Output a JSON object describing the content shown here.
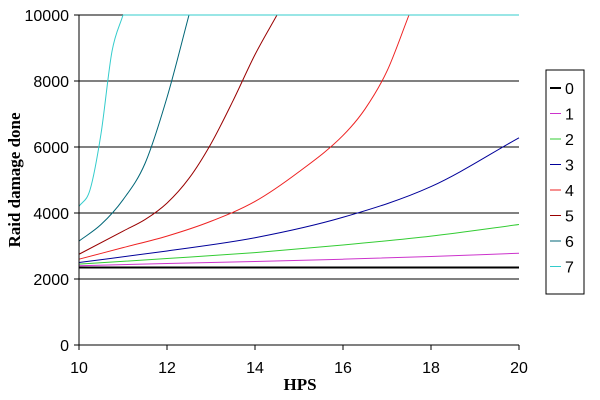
{
  "chart_data": {
    "type": "line",
    "xlabel": "HPS",
    "ylabel": "Raid damage done",
    "xlim": [
      10,
      20
    ],
    "ylim": [
      0,
      10000
    ],
    "x_ticks": [
      "10",
      "12",
      "14",
      "16",
      "18",
      "20"
    ],
    "y_ticks": [
      "0",
      "2000",
      "4000",
      "6000",
      "8000",
      "10000"
    ],
    "x_tick_values": [
      10,
      12,
      14,
      16,
      18,
      20
    ],
    "y_tick_values": [
      0,
      2000,
      4000,
      6000,
      8000,
      10000
    ],
    "grid": "horizontal",
    "legend_position": "right",
    "series": [
      {
        "name": "0",
        "color": "#000000",
        "points": [
          [
            10,
            2350
          ],
          [
            20,
            2350
          ]
        ]
      },
      {
        "name": "1",
        "color": "#cc33cc",
        "points": [
          [
            10,
            2400
          ],
          [
            12,
            2470
          ],
          [
            14,
            2530
          ],
          [
            16,
            2600
          ],
          [
            18,
            2680
          ],
          [
            20,
            2780
          ]
        ]
      },
      {
        "name": "2",
        "color": "#33cc33",
        "points": [
          [
            10,
            2450
          ],
          [
            12,
            2620
          ],
          [
            14,
            2800
          ],
          [
            16,
            3030
          ],
          [
            18,
            3300
          ],
          [
            20,
            3650
          ]
        ]
      },
      {
        "name": "3",
        "color": "#000099",
        "points": [
          [
            10,
            2500
          ],
          [
            12,
            2850
          ],
          [
            14,
            3250
          ],
          [
            16,
            3870
          ],
          [
            18,
            4800
          ],
          [
            20,
            6280
          ]
        ]
      },
      {
        "name": "4",
        "color": "#ee2222",
        "points": [
          [
            10,
            2600
          ],
          [
            11,
            2950
          ],
          [
            12,
            3300
          ],
          [
            13,
            3750
          ],
          [
            14,
            4350
          ],
          [
            15,
            5250
          ],
          [
            16,
            6350
          ],
          [
            16.5,
            7150
          ],
          [
            17,
            8300
          ],
          [
            17.5,
            10000
          ]
        ]
      },
      {
        "name": "5",
        "color": "#990000",
        "points": [
          [
            10,
            2750
          ],
          [
            11,
            3450
          ],
          [
            11.5,
            3800
          ],
          [
            12,
            4300
          ],
          [
            12.5,
            5050
          ],
          [
            13,
            6100
          ],
          [
            13.5,
            7400
          ],
          [
            14,
            8800
          ],
          [
            14.5,
            10000
          ]
        ]
      },
      {
        "name": "6",
        "color": "#006677",
        "points": [
          [
            10,
            3150
          ],
          [
            10.5,
            3650
          ],
          [
            11,
            4400
          ],
          [
            11.5,
            5500
          ],
          [
            12,
            7500
          ],
          [
            12.5,
            10000
          ]
        ]
      },
      {
        "name": "7",
        "color": "#33cccc",
        "points": [
          [
            10,
            4200
          ],
          [
            10.25,
            4700
          ],
          [
            10.5,
            6400
          ],
          [
            10.75,
            8900
          ],
          [
            11,
            10000
          ]
        ]
      }
    ]
  }
}
